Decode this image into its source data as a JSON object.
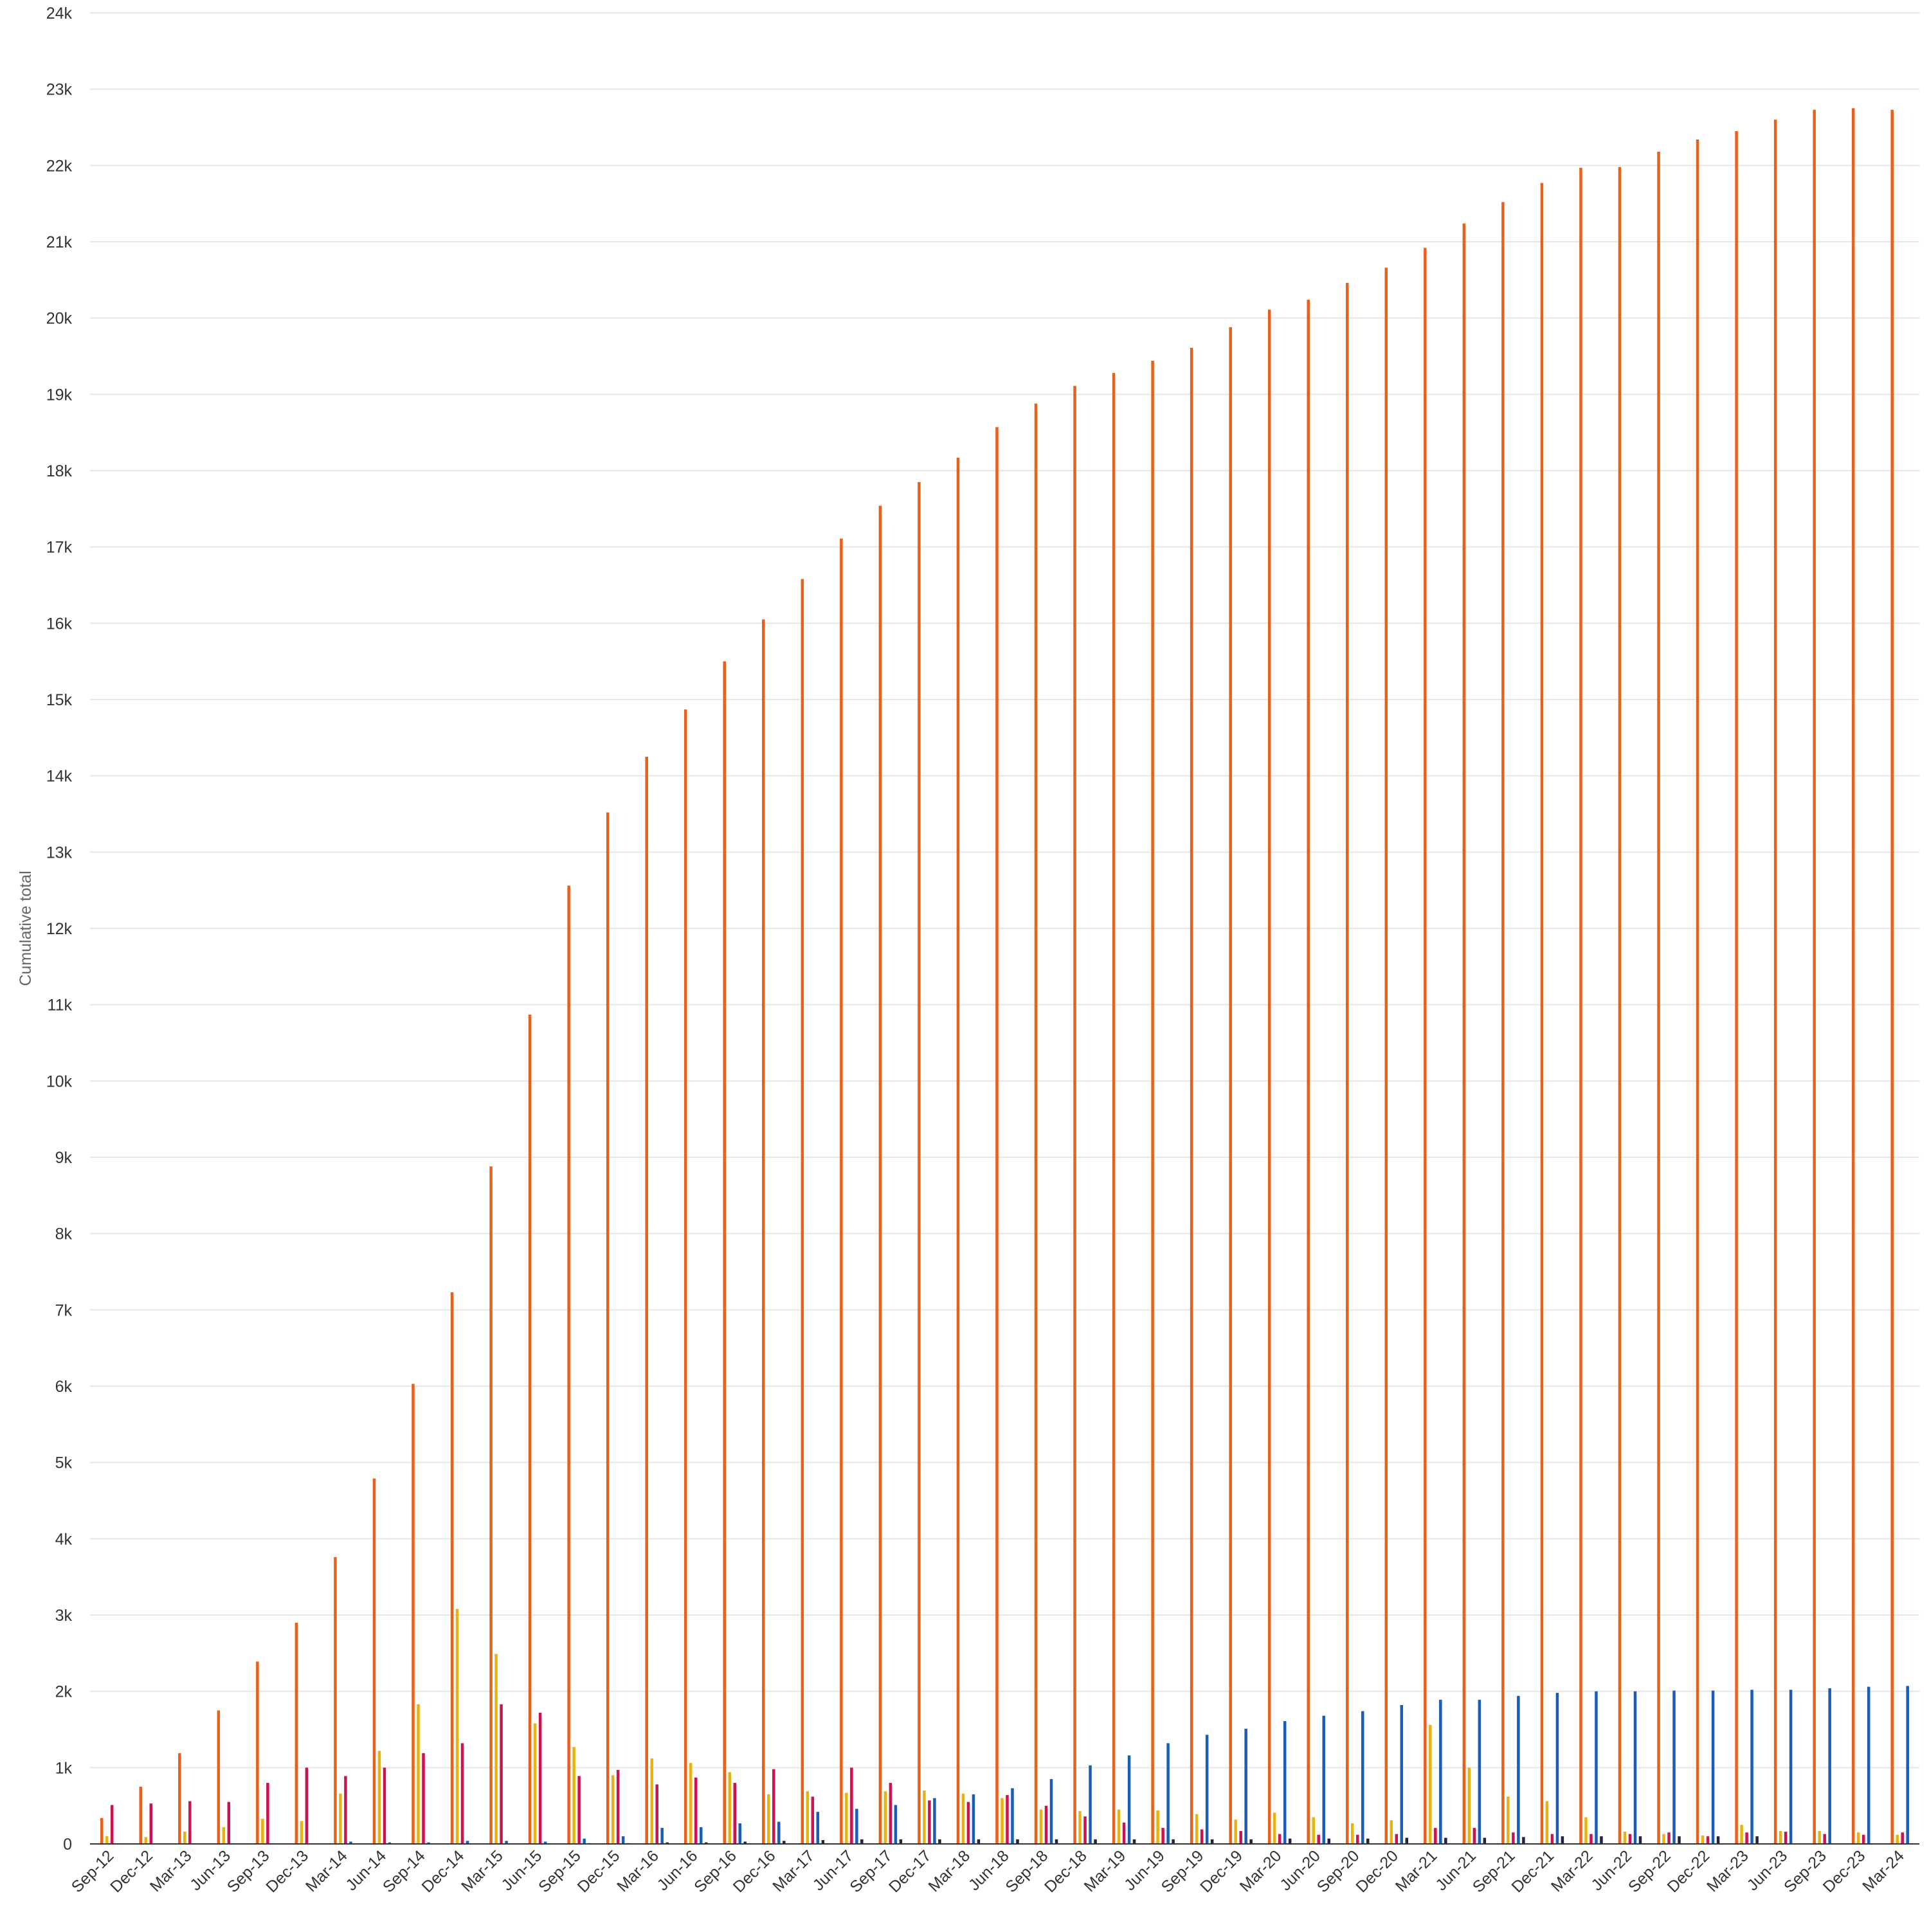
{
  "chart_data": {
    "type": "bar",
    "ylabel": "Cumulative total",
    "ylim": [
      0,
      24000
    ],
    "yticks": [
      0,
      1000,
      2000,
      3000,
      4000,
      5000,
      6000,
      7000,
      8000,
      9000,
      10000,
      11000,
      12000,
      13000,
      14000,
      15000,
      16000,
      17000,
      18000,
      19000,
      20000,
      21000,
      22000,
      23000,
      24000
    ],
    "ytick_labels": [
      "0",
      "1k",
      "2k",
      "3k",
      "4k",
      "5k",
      "6k",
      "7k",
      "8k",
      "9k",
      "10k",
      "11k",
      "12k",
      "13k",
      "14k",
      "15k",
      "16k",
      "17k",
      "18k",
      "19k",
      "20k",
      "21k",
      "22k",
      "23k",
      "24k"
    ],
    "grid": true,
    "legend": "none",
    "categories": [
      "Sep-12",
      "Dec-12",
      "Mar-13",
      "Jun-13",
      "Sep-13",
      "Dec-13",
      "Mar-14",
      "Jun-14",
      "Sep-14",
      "Dec-14",
      "Mar-15",
      "Jun-15",
      "Sep-15",
      "Dec-15",
      "Mar-16",
      "Jun-16",
      "Sep-16",
      "Dec-16",
      "Mar-17",
      "Jun-17",
      "Sep-17",
      "Dec-17",
      "Mar-18",
      "Jun-18",
      "Sep-18",
      "Dec-18",
      "Mar-19",
      "Jun-19",
      "Sep-19",
      "Dec-19",
      "Mar-20",
      "Jun-20",
      "Sep-20",
      "Dec-20",
      "Mar-21",
      "Jun-21",
      "Sep-21",
      "Dec-21",
      "Mar-22",
      "Jun-22",
      "Sep-22",
      "Dec-22",
      "Mar-23",
      "Jun-23",
      "Sep-23",
      "Dec-23",
      "Mar-24"
    ],
    "series": [
      {
        "color": "#e8601a",
        "values": [
          340,
          750,
          1190,
          1750,
          2390,
          2900,
          3760,
          4790,
          6030,
          7230,
          8880,
          10870,
          12560,
          13520,
          14250,
          14870,
          15500,
          16050,
          16580,
          17110,
          17540,
          17850,
          18170,
          18570,
          18880,
          19110,
          19280,
          19440,
          19610,
          19880,
          20110,
          20240,
          20460,
          20660,
          20920,
          21240,
          21520,
          21770,
          21970,
          21980,
          22180,
          22340,
          22450,
          22600,
          22730,
          22750,
          22730
        ]
      },
      {
        "color": "#e8b210",
        "values": [
          100,
          90,
          160,
          220,
          330,
          300,
          660,
          1220,
          1830,
          3080,
          2490,
          1580,
          1270,
          900,
          1120,
          1060,
          940,
          650,
          690,
          670,
          690,
          700,
          660,
          600,
          450,
          430,
          450,
          440,
          390,
          320,
          410,
          350,
          270,
          310,
          1560,
          1000,
          620,
          560,
          350,
          160,
          130,
          110,
          250,
          170,
          170,
          150,
          120
        ]
      },
      {
        "color": "#cc1350",
        "values": [
          510,
          530,
          560,
          550,
          800,
          1000,
          890,
          1000,
          1190,
          1320,
          1830,
          1720,
          890,
          970,
          780,
          870,
          800,
          980,
          620,
          1000,
          800,
          570,
          550,
          640,
          500,
          360,
          280,
          210,
          190,
          170,
          130,
          120,
          120,
          130,
          210,
          210,
          150,
          130,
          130,
          130,
          150,
          100,
          150,
          160,
          130,
          120,
          150
        ]
      },
      {
        "color": "#1a5cb8",
        "values": [
          0,
          0,
          0,
          0,
          0,
          0,
          30,
          20,
          20,
          40,
          40,
          30,
          70,
          100,
          210,
          220,
          270,
          290,
          420,
          460,
          510,
          600,
          650,
          730,
          850,
          1030,
          1160,
          1320,
          1430,
          1510,
          1610,
          1680,
          1740,
          1820,
          1890,
          1890,
          1940,
          1980,
          2000,
          2000,
          2010,
          2010,
          2020,
          2020,
          2040,
          2060,
          2070
        ]
      },
      {
        "color": "#222244",
        "values": [
          0,
          0,
          0,
          0,
          0,
          0,
          0,
          0,
          0,
          0,
          0,
          0,
          10,
          10,
          20,
          20,
          30,
          40,
          50,
          60,
          60,
          60,
          60,
          60,
          60,
          60,
          60,
          60,
          60,
          60,
          70,
          70,
          70,
          80,
          80,
          80,
          90,
          100,
          100,
          100,
          100,
          100,
          100,
          0,
          0,
          0,
          0
        ]
      }
    ]
  }
}
